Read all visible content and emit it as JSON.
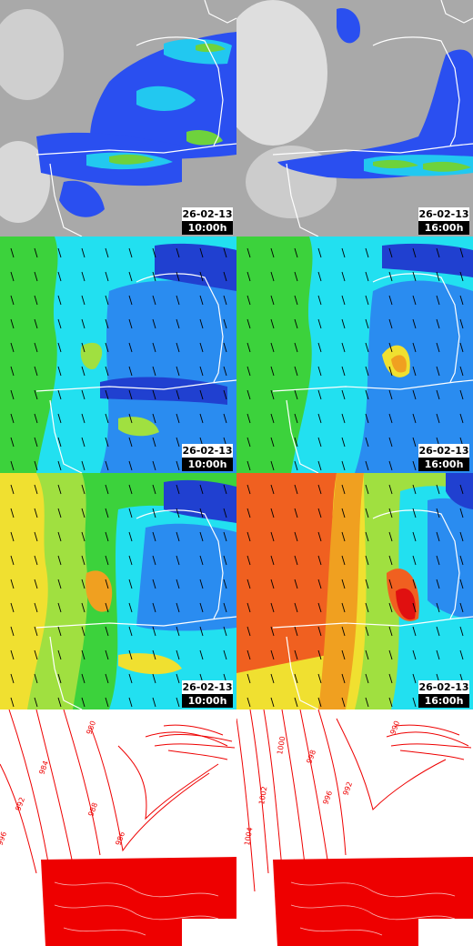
{
  "panels": [
    {
      "id": "cloud-rain-10",
      "kind": "precip",
      "date": "26-02-13",
      "hour": "10:00h"
    },
    {
      "id": "cloud-rain-16",
      "kind": "precip",
      "date": "26-02-13",
      "hour": "16:00h"
    },
    {
      "id": "wind-10",
      "kind": "wind",
      "date": "26-02-13",
      "hour": "10:00h"
    },
    {
      "id": "wind-16",
      "kind": "wind",
      "date": "26-02-13",
      "hour": "16:00h"
    },
    {
      "id": "gust-10",
      "kind": "gust",
      "date": "26-02-13",
      "hour": "10:00h"
    },
    {
      "id": "gust-16",
      "kind": "gust",
      "date": "26-02-13",
      "hour": "16:00h"
    },
    {
      "id": "pressure-10",
      "kind": "pressure",
      "isobar_labels": [
        "980",
        "984",
        "988",
        "992",
        "996",
        "986"
      ]
    },
    {
      "id": "pressure-16",
      "kind": "pressure",
      "isobar_labels": [
        "990",
        "992",
        "996",
        "998",
        "1000",
        "1002",
        "1004"
      ]
    }
  ],
  "colors": {
    "coastline": "#ffffff",
    "isobar": "#ee0000",
    "cloud": "#b4b4b4",
    "rain_light": "#2a4ff0",
    "rain_mid": "#22c8f0",
    "rain_heavy": "#6ed23c",
    "wind_low": "#22e0f0",
    "wind_mid": "#3cd23c",
    "wind_high": "#f0e030",
    "wind_max": "#f06020"
  }
}
